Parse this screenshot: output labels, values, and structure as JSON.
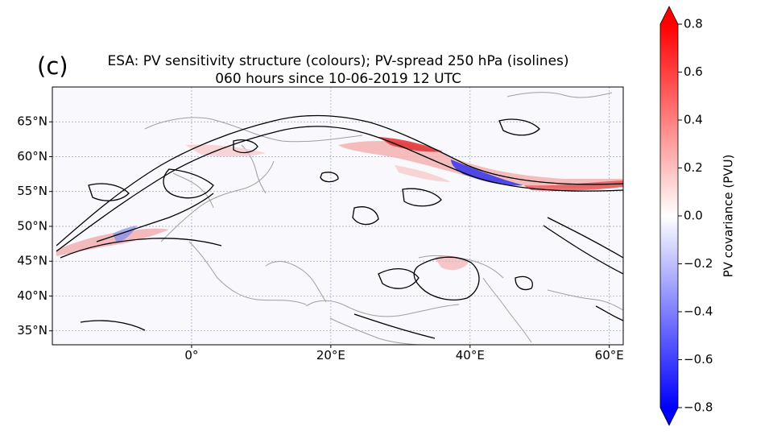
{
  "panel_label": "(c)",
  "title_line1": "ESA: PV sensitivity structure (colours); PV-spread 250 hPa (isolines)",
  "title_line2": "060 hours  since 10-06-2019 12 UTC",
  "map": {
    "lon_range": [
      -20,
      62
    ],
    "lat_range": [
      33,
      70
    ],
    "lat_ticks": [
      {
        "value": 65,
        "label": "65°N"
      },
      {
        "value": 60,
        "label": "60°N"
      },
      {
        "value": 55,
        "label": "55°N"
      },
      {
        "value": 50,
        "label": "50°N"
      },
      {
        "value": 45,
        "label": "45°N"
      },
      {
        "value": 40,
        "label": "40°N"
      },
      {
        "value": 35,
        "label": "35°N"
      }
    ],
    "lon_ticks": [
      {
        "value": 0,
        "label": "0°"
      },
      {
        "value": 20,
        "label": "20°E"
      },
      {
        "value": 40,
        "label": "40°E"
      },
      {
        "value": 60,
        "label": "60°E"
      }
    ],
    "gridlines": true,
    "coastline_color": "#999999",
    "contour_color": "#000000"
  },
  "colorbar": {
    "label": "PV covariance (PVU)",
    "range": [
      -0.8,
      0.8
    ],
    "ticks": [
      {
        "value": 0.8,
        "label": "0.8"
      },
      {
        "value": 0.6,
        "label": "0.6"
      },
      {
        "value": 0.4,
        "label": "0.4"
      },
      {
        "value": 0.2,
        "label": "0.2"
      },
      {
        "value": 0.0,
        "label": "0.0"
      },
      {
        "value": -0.2,
        "label": "−0.2"
      },
      {
        "value": -0.4,
        "label": "−0.4"
      },
      {
        "value": -0.6,
        "label": "−0.6"
      },
      {
        "value": -0.8,
        "label": "−0.8"
      }
    ],
    "colormap": "bwr",
    "extend": "both",
    "color_max": "#ff0000",
    "color_min": "#0000ff",
    "color_mid": "#ffffff"
  }
}
